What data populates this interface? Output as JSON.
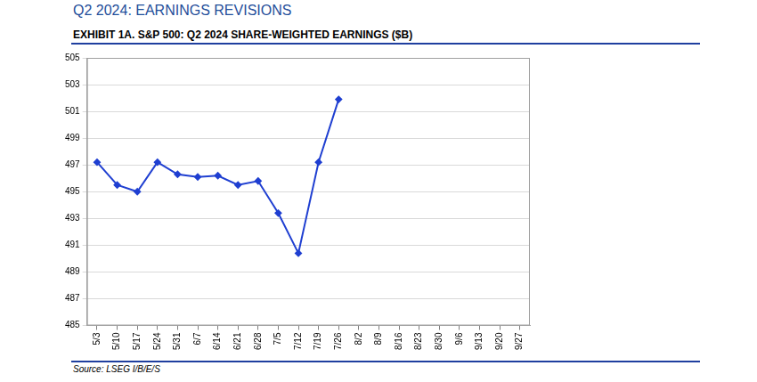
{
  "chart_data": {
    "type": "line",
    "header": "Q2 2024: EARNINGS REVISIONS",
    "title": "EXHIBIT 1A. S&P 500: Q2 2024 SHARE-WEIGHTED EARNINGS ($B)",
    "source": "Source: LSEG I/B/E/S",
    "categories": [
      "5/3",
      "5/10",
      "5/17",
      "5/24",
      "5/31",
      "6/7",
      "6/14",
      "6/21",
      "6/28",
      "7/5",
      "7/12",
      "7/19",
      "7/26",
      "8/2",
      "8/9",
      "8/16",
      "8/23",
      "8/30",
      "9/6",
      "9/13",
      "9/20",
      "9/27"
    ],
    "values": [
      497.2,
      495.5,
      495.0,
      497.2,
      496.3,
      496.1,
      496.2,
      495.5,
      495.8,
      493.4,
      490.4,
      497.2,
      501.9,
      null,
      null,
      null,
      null,
      null,
      null,
      null,
      null,
      null
    ],
    "color": "#1f3fd1",
    "marker": "diamond",
    "ylim": [
      485,
      505
    ],
    "yticks": [
      485,
      487,
      489,
      491,
      493,
      495,
      497,
      499,
      501,
      503,
      505
    ],
    "grid": true
  }
}
